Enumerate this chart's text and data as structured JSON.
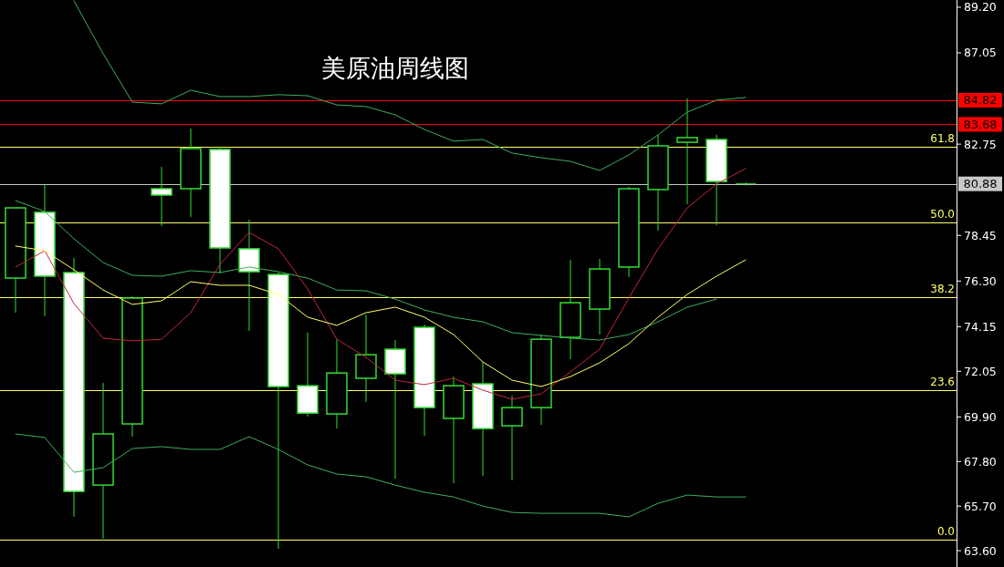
{
  "chart_data": {
    "type": "candlestick",
    "title": "美原油周线图",
    "categories": [
      null,
      null,
      null,
      null,
      null,
      null,
      null,
      null,
      null,
      null,
      null,
      null,
      null,
      null,
      null,
      null,
      null,
      null,
      null,
      null,
      null,
      null,
      null,
      null,
      null,
      null
    ],
    "color": "#33dd33",
    "ohlc": [
      [
        76.44,
        79.75,
        74.81,
        79.75
      ],
      [
        79.54,
        80.82,
        74.64,
        76.53
      ],
      [
        76.7,
        77.39,
        65.19,
        66.39
      ],
      [
        66.69,
        71.5,
        64.16,
        69.1
      ],
      [
        69.57,
        75.58,
        68.97,
        75.5
      ],
      [
        80.65,
        81.68,
        78.89,
        80.35
      ],
      [
        80.65,
        83.49,
        79.32,
        82.54
      ],
      [
        82.5,
        82.63,
        76.66,
        77.86
      ],
      [
        77.82,
        79.19,
        73.95,
        76.74
      ],
      [
        76.61,
        76.7,
        63.68,
        71.33
      ],
      [
        71.37,
        73.87,
        69.91,
        70.08
      ],
      [
        70.04,
        73.56,
        69.35,
        71.97
      ],
      [
        71.72,
        74.72,
        70.6,
        72.83
      ],
      [
        73.09,
        73.52,
        66.99,
        71.93
      ],
      [
        74.12,
        74.25,
        69.01,
        70.34
      ],
      [
        69.83,
        71.8,
        66.78,
        71.37
      ],
      [
        71.46,
        72.49,
        67.12,
        69.35
      ],
      [
        69.48,
        70.9,
        66.91,
        70.34
      ],
      [
        70.34,
        73.78,
        69.53,
        73.56
      ],
      [
        73.65,
        77.3,
        72.62,
        75.28
      ],
      [
        74.98,
        77.34,
        73.78,
        76.87
      ],
      [
        76.96,
        80.74,
        76.49,
        80.65
      ],
      [
        80.61,
        83.19,
        78.68,
        82.67
      ],
      [
        82.84,
        84.9,
        79.92,
        83.06
      ],
      [
        82.97,
        83.19,
        78.93,
        80.99
      ],
      [
        80.88,
        80.95,
        80.8,
        80.88
      ]
    ],
    "series": [
      {
        "type": "line",
        "color": "#3fae5f",
        "values": [
          null,
          null,
          89.5,
          87.01,
          84.73,
          84.65,
          85.29,
          84.99,
          84.99,
          85.08,
          85.03,
          84.6,
          84.52,
          84.13,
          83.44,
          82.89,
          82.97,
          82.33,
          82.11,
          81.94,
          81.51,
          82.24,
          83.19,
          84.26,
          84.82,
          84.95
        ]
      },
      {
        "type": "line",
        "color": "#3fae5f",
        "values": [
          80.09,
          79.58,
          78.29,
          77.17,
          76.57,
          76.53,
          76.79,
          76.7,
          76.96,
          76.74,
          76.44,
          75.88,
          75.84,
          75.45,
          74.94,
          74.59,
          74.38,
          73.87,
          73.74,
          73.61,
          73.52,
          73.78,
          74.38,
          75.07,
          75.45,
          null
        ]
      },
      {
        "type": "line",
        "color": "#3fae5f",
        "values": [
          69.1,
          68.93,
          67.29,
          67.51,
          68.41,
          68.5,
          68.37,
          68.37,
          68.97,
          68.37,
          67.64,
          67.21,
          67.08,
          66.69,
          66.35,
          66.13,
          65.7,
          65.4,
          65.36,
          65.36,
          65.36,
          65.19,
          65.83,
          66.22,
          66.13,
          66.13
        ]
      },
      {
        "type": "line",
        "color": "#c0283c",
        "values": [
          76.96,
          77.73,
          75.24,
          73.61,
          73.48,
          73.56,
          74.81,
          77.09,
          78.59,
          77.82,
          75.93,
          73.56,
          72.71,
          71.63,
          71.42,
          71.72,
          71.16,
          70.73,
          70.99,
          72.02,
          73.09,
          75.5,
          77.82,
          79.75,
          80.87,
          81.6
        ]
      },
      {
        "type": "line",
        "color": "#ffff66",
        "values": [
          77.95,
          77.73,
          76.83,
          75.88,
          75.2,
          75.37,
          76.27,
          76.1,
          76.1,
          75.67,
          74.6,
          74.21,
          74.81,
          75.07,
          74.6,
          73.78,
          72.49,
          71.63,
          71.33,
          71.8,
          72.45,
          73.35,
          74.6,
          75.67,
          76.53,
          77.3
        ]
      }
    ],
    "ref_lines": [
      {
        "axis": "y",
        "value": 84.82,
        "label": "84.82",
        "color": "#ff0000"
      },
      {
        "axis": "y",
        "value": 83.68,
        "label": "83.68",
        "color": "#ff0000"
      },
      {
        "axis": "y",
        "value": 80.88,
        "label": "80.88",
        "color": "#c8c8c8"
      },
      {
        "axis": "y",
        "value": 82.63,
        "color": "#ffff66"
      },
      {
        "axis": "y",
        "value": 79.06,
        "color": "#ffff66"
      },
      {
        "axis": "y",
        "value": 75.54,
        "color": "#ffff66"
      },
      {
        "axis": "y",
        "value": 71.16,
        "color": "#ffff66"
      },
      {
        "axis": "y",
        "value": 64.11,
        "color": "#ffff66"
      }
    ],
    "annotations": [
      {
        "text": "61.8",
        "y": 82.63
      },
      {
        "text": "50.0",
        "y": 79.06
      },
      {
        "text": "38.2",
        "y": 75.54
      },
      {
        "text": "23.6",
        "y": 71.16
      },
      {
        "text": "0.0",
        "y": 64.11
      }
    ],
    "ylim": [
      62.83,
      89.54
    ],
    "yticks": [
      {
        "value": 89.2,
        "label": "89.20"
      },
      {
        "value": 87.05,
        "label": "87.05"
      },
      82.75,
      78.45,
      {
        "value": 76.3,
        "label": "76.30"
      },
      74.15,
      72.05,
      {
        "value": 69.9,
        "label": "69.90"
      },
      {
        "value": 67.8,
        "label": "67.80"
      },
      {
        "value": 65.7,
        "label": "65.70"
      },
      {
        "value": 63.6,
        "label": "63.60"
      }
    ],
    "tick_labels": "y",
    "grid": false
  }
}
